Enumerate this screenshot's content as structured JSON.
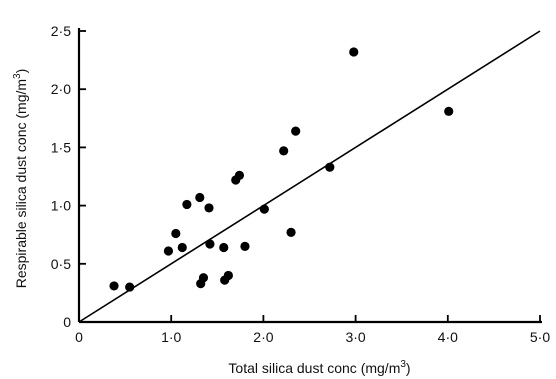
{
  "chart_data": {
    "type": "scatter",
    "title": "",
    "xlabel": "Total silica dust conc (mg/m",
    "xlabel_sup": "3",
    "xlabel_end": ")",
    "ylabel": "Respirable silica dust conc (mg/m",
    "ylabel_sup": "3",
    "ylabel_end": ")",
    "xlim": [
      0,
      5.0
    ],
    "ylim": [
      0,
      2.5
    ],
    "grid": false,
    "x_ticks": [
      {
        "value": 0,
        "label": "0"
      },
      {
        "value": 1.0,
        "label": "1·0"
      },
      {
        "value": 2.0,
        "label": "2·0"
      },
      {
        "value": 3.0,
        "label": "3·0"
      },
      {
        "value": 4.0,
        "label": "4·0"
      },
      {
        "value": 5.0,
        "label": "5·0"
      }
    ],
    "y_ticks": [
      {
        "value": 0,
        "label": "0"
      },
      {
        "value": 0.5,
        "label": "0·5"
      },
      {
        "value": 1.0,
        "label": "1·0"
      },
      {
        "value": 1.5,
        "label": "1·5"
      },
      {
        "value": 2.0,
        "label": "2·0"
      },
      {
        "value": 2.5,
        "label": "2·5"
      }
    ],
    "series": [
      {
        "points": [
          {
            "x": 0.38,
            "y": 0.31
          },
          {
            "x": 0.55,
            "y": 0.3
          },
          {
            "x": 0.97,
            "y": 0.61
          },
          {
            "x": 1.05,
            "y": 0.76
          },
          {
            "x": 1.12,
            "y": 0.64
          },
          {
            "x": 1.17,
            "y": 1.01
          },
          {
            "x": 1.31,
            "y": 1.07
          },
          {
            "x": 1.32,
            "y": 0.33
          },
          {
            "x": 1.35,
            "y": 0.38
          },
          {
            "x": 1.41,
            "y": 0.98
          },
          {
            "x": 1.42,
            "y": 0.67
          },
          {
            "x": 1.57,
            "y": 0.64
          },
          {
            "x": 1.58,
            "y": 0.36
          },
          {
            "x": 1.62,
            "y": 0.4
          },
          {
            "x": 1.7,
            "y": 1.22
          },
          {
            "x": 1.74,
            "y": 1.26
          },
          {
            "x": 1.8,
            "y": 0.65
          },
          {
            "x": 2.01,
            "y": 0.97
          },
          {
            "x": 2.22,
            "y": 1.47
          },
          {
            "x": 2.3,
            "y": 0.77
          },
          {
            "x": 2.35,
            "y": 1.64
          },
          {
            "x": 2.72,
            "y": 1.33
          },
          {
            "x": 2.98,
            "y": 2.32
          },
          {
            "x": 4.01,
            "y": 1.81
          }
        ]
      }
    ],
    "reference_line": {
      "x1": 0,
      "y1": 0,
      "x2": 5.0,
      "y2": 2.5
    },
    "colors": {
      "marker": "#000000",
      "axis": "#000000",
      "line": "#000000"
    }
  }
}
